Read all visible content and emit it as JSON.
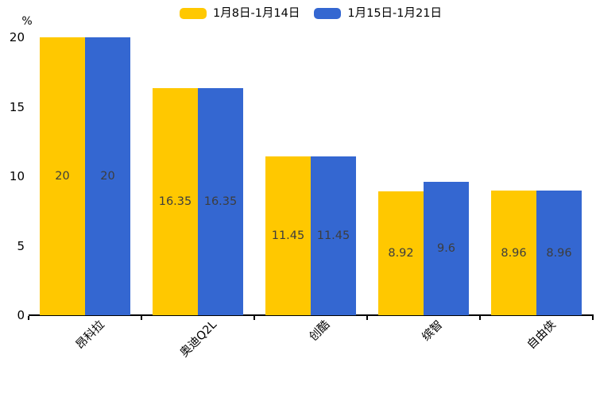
{
  "legend": {
    "items": [
      {
        "label": "1月8日-1月14日",
        "color": "#FFC800"
      },
      {
        "label": "1月15日-1月21日",
        "color": "#3467D1"
      }
    ]
  },
  "chart_data": {
    "type": "bar",
    "categories": [
      "昂科拉",
      "奥迪Q2L",
      "创酷",
      "缤智",
      "自由侠"
    ],
    "series": [
      {
        "name": "1月8日-1月14日",
        "color": "#FFC800",
        "values": [
          20,
          16.35,
          11.45,
          8.92,
          8.96
        ]
      },
      {
        "name": "1月15日-1月21日",
        "color": "#3467D1",
        "values": [
          20,
          16.35,
          11.45,
          9.6,
          8.96
        ]
      }
    ],
    "title": "",
    "xlabel": "",
    "ylabel": "%",
    "ylim": [
      0,
      20
    ],
    "yticks": [
      0,
      5,
      10,
      15,
      20
    ],
    "grid": false,
    "legend_position": "top-center",
    "value_labels": "inside-center",
    "category_label_rotation_deg": 45
  }
}
